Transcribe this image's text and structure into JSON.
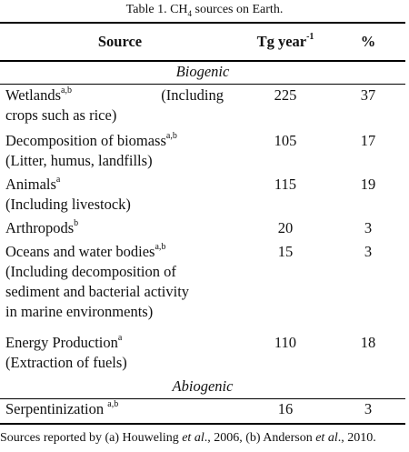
{
  "caption": {
    "prefix": "Table 1. CH",
    "sub": "4",
    "suffix": " sources on Earth."
  },
  "headers": {
    "source": "Source",
    "tg": "Tg year",
    "tg_sup": "-1",
    "pct": "%"
  },
  "groups": {
    "biogenic": "Biogenic",
    "abiogenic": "Abiogenic"
  },
  "rows": {
    "wetlands": {
      "name": "Wetlands",
      "sup": "a,b",
      "note_inline": "(Including",
      "note": "crops such as rice)",
      "tg": "225",
      "pct": "37"
    },
    "decomp": {
      "name": "Decomposition of biomass",
      "sup": "a,b",
      "note": "(Litter, humus, landfills)",
      "tg": "105",
      "pct": "17"
    },
    "animals": {
      "name": "Animals",
      "sup": "a",
      "note": "(Including livestock)",
      "tg": "115",
      "pct": "19"
    },
    "arthropods": {
      "name": "Arthropods",
      "sup": "b",
      "tg": "20",
      "pct": "3"
    },
    "oceans": {
      "name": "Oceans and water bodies",
      "sup": "a,b",
      "note1": "(Including decomposition of",
      "note2": "sediment and bacterial activity",
      "note3": "in marine environments)",
      "tg": "15",
      "pct": "3"
    },
    "energy": {
      "name": "Energy Production",
      "sup": "a",
      "note": "(Extraction of fuels)",
      "tg": "110",
      "pct": "18"
    },
    "serp": {
      "name": "Serpentinization ",
      "sup": "a,b",
      "tg": "16",
      "pct": "3"
    }
  },
  "footnote": {
    "p1": "Sources reported by (a) Houweling ",
    "et1": "et al",
    "p2": "., 2006, (b) Anderson ",
    "et2": "et al",
    "p3": "., 2010."
  }
}
